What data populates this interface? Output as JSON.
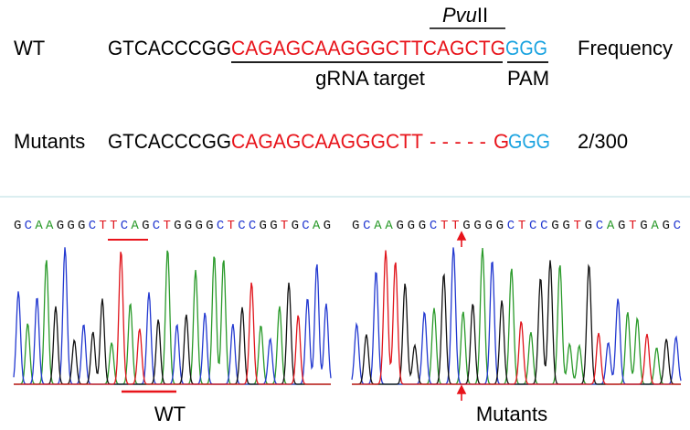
{
  "wt_row": {
    "label": "WT",
    "prefix": "GTCACCCGG",
    "target": "CAGAGCAAGGGCTTCAGCTG",
    "pam": "GGG",
    "column_title": "Frequency",
    "enzyme_italic": "Pvu",
    "enzyme_suffix": "II",
    "target_label": "gRNA target",
    "pam_label": "PAM"
  },
  "mutant_row": {
    "label": "Mutants",
    "prefix": "GTCACCCGG",
    "target": "CAGAGCAAGGGCTT",
    "deletion": "-----",
    "target_end": "G",
    "pam": "GGG",
    "frequency": "2/300"
  },
  "chromatograms": [
    {
      "sequence": "GCAAGGGCTTCAGCTGGGGCTCCGGTGCAG",
      "label": "WT"
    },
    {
      "sequence": "GCAAGGGCTTGGGGCTCCGGTGCAGTGAGC",
      "label": "Mutants"
    }
  ]
}
